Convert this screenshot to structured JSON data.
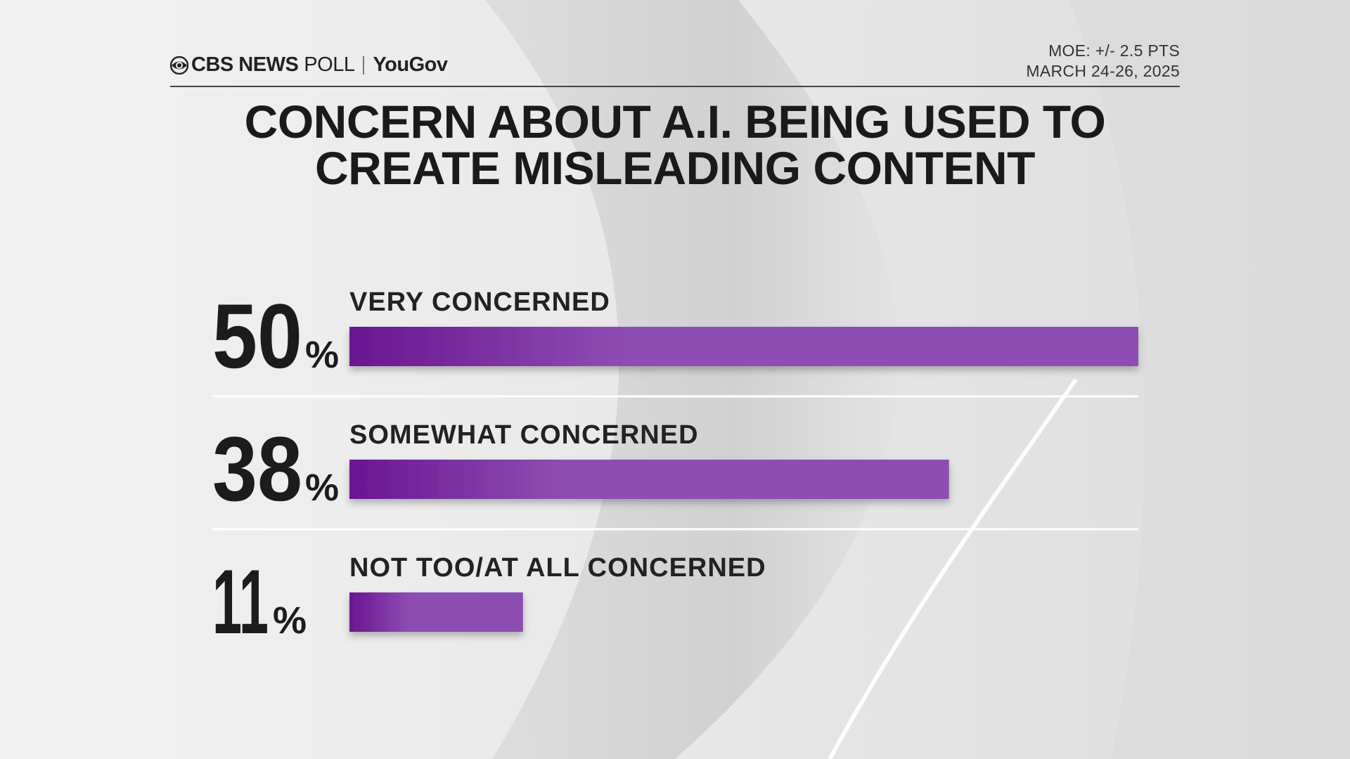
{
  "header": {
    "brand_cbs": "CBS NEWS",
    "brand_poll": "POLL",
    "brand_yougov": "YouGov",
    "moe": "MOE: +/- 2.5 PTS",
    "date": "MARCH 24-26, 2025"
  },
  "colors": {
    "bar_start": "#6a1590",
    "bar_end": "#8e4db3",
    "text": "#1c1c1c"
  },
  "chart_data": {
    "type": "bar",
    "orientation": "horizontal",
    "title": "CONCERN ABOUT A.I. BEING USED TO CREATE MISLEADING CONTENT",
    "title_lines": [
      "CONCERN ABOUT A.I. BEING USED TO",
      "CREATE MISLEADING CONTENT"
    ],
    "categories": [
      "VERY CONCERNED",
      "SOMEWHAT CONCERNED",
      "NOT TOO/AT ALL CONCERNED"
    ],
    "values": [
      50,
      38,
      11
    ],
    "value_labels": [
      "50",
      "38",
      "11"
    ],
    "unit": "%",
    "xlim": [
      0,
      50
    ],
    "grid": false,
    "legend": "none"
  }
}
